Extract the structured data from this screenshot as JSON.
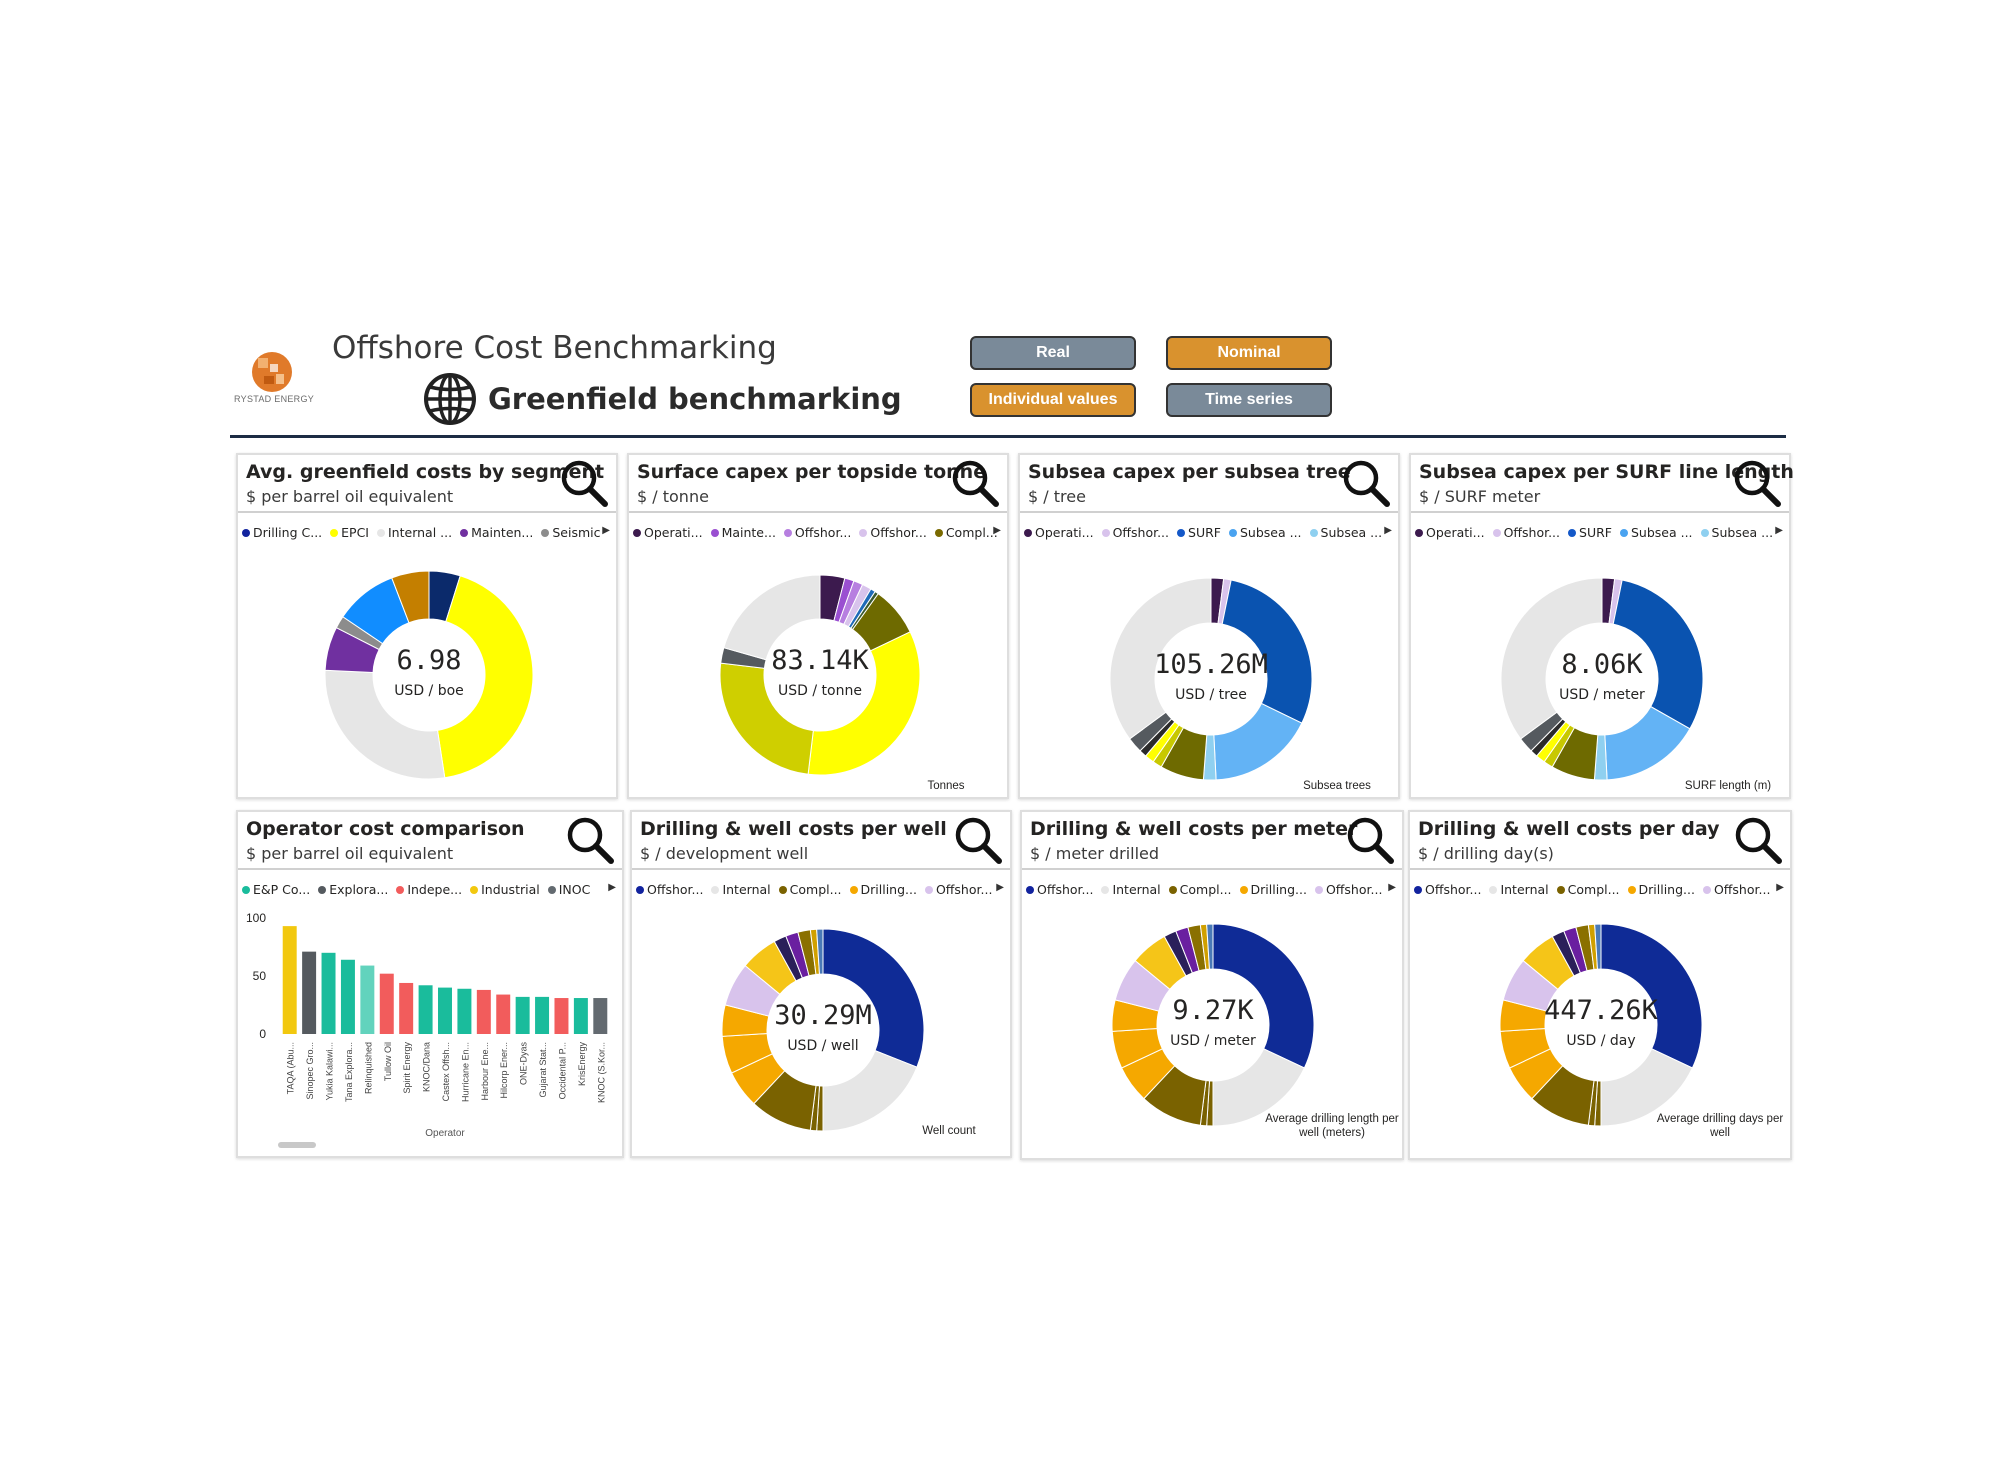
{
  "header": {
    "logo_text": "RYSTAD ENERGY",
    "app_title": "Offshore Cost Benchmarking",
    "subtitle": "Greenfield benchmarking",
    "buttons": {
      "real": "Real",
      "nominal": "Nominal",
      "individual": "Individual values",
      "time_series": "Time series"
    }
  },
  "colors": {
    "navy": "#1c2c44",
    "gray_button": "#7a8a99",
    "orange_button": "#d9922e"
  },
  "cards": [
    {
      "title": "Avg. greenfield costs by segment",
      "subtitle": "$ per barrel oil equivalent",
      "legend": [
        {
          "label": "Drilling C...",
          "color": "#12239e"
        },
        {
          "label": "EPCI",
          "color": "#ffff00"
        },
        {
          "label": "Internal ...",
          "color": "#e6e6e6"
        },
        {
          "label": "Mainten...",
          "color": "#7030a0"
        },
        {
          "label": "Seismic",
          "color": "#8c8c8c"
        }
      ],
      "value": "6.98",
      "unit": "USD / boe",
      "note": ""
    },
    {
      "title": "Surface capex per topside tonne",
      "subtitle": "$ / tonne",
      "legend": [
        {
          "label": "Operati...",
          "color": "#3c1a4e"
        },
        {
          "label": "Mainte...",
          "color": "#9a4fd1"
        },
        {
          "label": "Offshor...",
          "color": "#b77fe0"
        },
        {
          "label": "Offshor...",
          "color": "#d8c3ec"
        },
        {
          "label": "Compl...",
          "color": "#7a6a00"
        }
      ],
      "value": "83.14K",
      "unit": "USD / tonne",
      "note": "Tonnes"
    },
    {
      "title": "Subsea capex per subsea tree",
      "subtitle": "$ / tree",
      "legend": [
        {
          "label": "Operati...",
          "color": "#3c1a4e"
        },
        {
          "label": "Offshor...",
          "color": "#d8c3ec"
        },
        {
          "label": "SURF",
          "color": "#1458c8"
        },
        {
          "label": "Subsea ...",
          "color": "#4aa3f0"
        },
        {
          "label": "Subsea ...",
          "color": "#8fd0f0"
        }
      ],
      "value": "105.26M",
      "unit": "USD / tree",
      "note": "Subsea trees"
    },
    {
      "title": "Subsea capex per SURF line length",
      "subtitle": "$ / SURF meter",
      "legend": [
        {
          "label": "Operati...",
          "color": "#3c1a4e"
        },
        {
          "label": "Offshor...",
          "color": "#d8c3ec"
        },
        {
          "label": "SURF",
          "color": "#1458c8"
        },
        {
          "label": "Subsea ...",
          "color": "#4aa3f0"
        },
        {
          "label": "Subsea ...",
          "color": "#8fd0f0"
        }
      ],
      "value": "8.06K",
      "unit": "USD / meter",
      "note": "SURF length (m)"
    },
    {
      "title": "Operator cost comparison",
      "subtitle": "$ per barrel oil equivalent",
      "legend": [
        {
          "label": "E&P Co...",
          "color": "#1abc9c"
        },
        {
          "label": "Explora...",
          "color": "#555a5f"
        },
        {
          "label": "Indepe...",
          "color": "#f25c5c"
        },
        {
          "label": "Industrial",
          "color": "#f2c80f"
        },
        {
          "label": "INOC",
          "color": "#636a70"
        }
      ]
    },
    {
      "title": "Drilling & well costs per well",
      "subtitle": "$ / development well",
      "legend": [
        {
          "label": "Offshor...",
          "color": "#12239e"
        },
        {
          "label": "Internal",
          "color": "#e6e6e6"
        },
        {
          "label": "Compl...",
          "color": "#7a6200"
        },
        {
          "label": "Drilling...",
          "color": "#f5a800"
        },
        {
          "label": "Offshor...",
          "color": "#d8c3ec"
        }
      ],
      "value": "30.29M",
      "unit": "USD / well",
      "note": "Well count"
    },
    {
      "title": "Drilling & well costs per meter",
      "subtitle": "$ / meter drilled",
      "legend": [
        {
          "label": "Offshor...",
          "color": "#12239e"
        },
        {
          "label": "Internal",
          "color": "#e6e6e6"
        },
        {
          "label": "Compl...",
          "color": "#7a6200"
        },
        {
          "label": "Drilling...",
          "color": "#f5a800"
        },
        {
          "label": "Offshor...",
          "color": "#d8c3ec"
        }
      ],
      "value": "9.27K",
      "unit": "USD / meter",
      "note": "Average drilling length per well (meters)"
    },
    {
      "title": "Drilling & well costs per day",
      "subtitle": "$ / drilling day(s)",
      "legend": [
        {
          "label": "Offshor...",
          "color": "#12239e"
        },
        {
          "label": "Internal",
          "color": "#e6e6e6"
        },
        {
          "label": "Compl...",
          "color": "#7a6200"
        },
        {
          "label": "Drilling...",
          "color": "#f5a800"
        },
        {
          "label": "Offshor...",
          "color": "#d8c3ec"
        }
      ],
      "value": "447.26K",
      "unit": "USD / day",
      "note": "Average drilling days per well"
    }
  ],
  "chart_data": [
    {
      "type": "pie",
      "title": "Avg. greenfield costs by segment",
      "donut": true,
      "slices": [
        {
          "label": "Drilling C...",
          "value": 5,
          "color": "#0b2a6b"
        },
        {
          "label": "EPCI",
          "value": 44,
          "color": "#ffff00"
        },
        {
          "label": "Internal ...",
          "value": 29,
          "color": "#e6e6e6"
        },
        {
          "label": "Mainten...",
          "value": 7,
          "color": "#7030a0"
        },
        {
          "label": "Seismic",
          "value": 2,
          "color": "#8c8c8c"
        },
        {
          "label": "",
          "value": 10,
          "color": "#118dff"
        },
        {
          "label": "",
          "value": 6,
          "color": "#c47f00"
        }
      ]
    },
    {
      "type": "pie",
      "title": "Surface capex per topside tonne",
      "donut": true,
      "slices": [
        {
          "label": "Operati...",
          "value": 4,
          "color": "#3c1a4e"
        },
        {
          "label": "Mainte...",
          "value": 1.5,
          "color": "#9a4fd1"
        },
        {
          "label": "Offshor...",
          "value": 1.5,
          "color": "#b77fe0"
        },
        {
          "label": "Offshor...",
          "value": 1.5,
          "color": "#d8c3ec"
        },
        {
          "label": "",
          "value": 0.8,
          "color": "#1f6ab8"
        },
        {
          "label": "",
          "value": 0.6,
          "color": "#3a5a30"
        },
        {
          "label": "Compl...",
          "value": 8,
          "color": "#6e6a00"
        },
        {
          "label": "",
          "value": 34,
          "color": "#ffff00"
        },
        {
          "label": "",
          "value": 25,
          "color": "#cfcf00"
        },
        {
          "label": "",
          "value": 2.5,
          "color": "#555a5f"
        },
        {
          "label": "",
          "value": 20.6,
          "color": "#e6e6e6"
        }
      ]
    },
    {
      "type": "pie",
      "title": "Subsea capex per subsea tree",
      "donut": true,
      "slices": [
        {
          "label": "Operati...",
          "value": 2,
          "color": "#3c1a4e"
        },
        {
          "label": "Offshor...",
          "value": 1.2,
          "color": "#d8c3ec"
        },
        {
          "label": "SURF",
          "value": 29,
          "color": "#0a53b0"
        },
        {
          "label": "Subsea ...",
          "value": 17,
          "color": "#63b3f5"
        },
        {
          "label": "Subsea ...",
          "value": 2,
          "color": "#8fd0f0"
        },
        {
          "label": "",
          "value": 7,
          "color": "#6e6a00"
        },
        {
          "label": "",
          "value": 1.5,
          "color": "#c8c800"
        },
        {
          "label": "",
          "value": 1.5,
          "color": "#ffff00"
        },
        {
          "label": "",
          "value": 1.2,
          "color": "#2b2b2b"
        },
        {
          "label": "",
          "value": 2.5,
          "color": "#555a5f"
        },
        {
          "label": "",
          "value": 35.1,
          "color": "#e6e6e6"
        }
      ]
    },
    {
      "type": "pie",
      "title": "Subsea capex per SURF line length",
      "donut": true,
      "slices": [
        {
          "label": "Operati...",
          "value": 2,
          "color": "#3c1a4e"
        },
        {
          "label": "Offshor...",
          "value": 1.2,
          "color": "#d8c3ec"
        },
        {
          "label": "SURF",
          "value": 30,
          "color": "#0a53b0"
        },
        {
          "label": "Subsea ...",
          "value": 16,
          "color": "#63b3f5"
        },
        {
          "label": "Subsea ...",
          "value": 2,
          "color": "#8fd0f0"
        },
        {
          "label": "",
          "value": 7,
          "color": "#6e6a00"
        },
        {
          "label": "",
          "value": 1.5,
          "color": "#c8c800"
        },
        {
          "label": "",
          "value": 1.5,
          "color": "#ffff00"
        },
        {
          "label": "",
          "value": 1.2,
          "color": "#2b2b2b"
        },
        {
          "label": "",
          "value": 2.5,
          "color": "#555a5f"
        },
        {
          "label": "",
          "value": 35.1,
          "color": "#e6e6e6"
        }
      ]
    },
    {
      "type": "bar",
      "title": "Operator cost comparison",
      "xlabel": "Operator",
      "ylabel": "",
      "ylim": [
        0,
        100
      ],
      "yticks": [
        0,
        50,
        100
      ],
      "categories": [
        "TAQA (Abu...",
        "Sinopec Gro...",
        "Yukia Kalawi...",
        "Tana Explora...",
        "Relinquished",
        "Tullow Oil",
        "Spirit Energy",
        "KNOC/Dana",
        "Castex Offsh...",
        "Hurricane En...",
        "Harbour Ene...",
        "Hilcorp Ener...",
        "ONE-Dyas",
        "Gujarat Stat...",
        "Occidental P...",
        "KrisEnergy",
        "KNOC (S.Kor..."
      ],
      "values": [
        93,
        71,
        70,
        64,
        59,
        52,
        44,
        42,
        40,
        39,
        38,
        34,
        32,
        32,
        31,
        31,
        31
      ],
      "colors": [
        "#f2c80f",
        "#555a5f",
        "#1abc9c",
        "#1abc9c",
        "#62d3bd",
        "#f25c5c",
        "#f25c5c",
        "#1abc9c",
        "#1abc9c",
        "#1abc9c",
        "#f25c5c",
        "#f25c5c",
        "#1abc9c",
        "#1abc9c",
        "#f25c5c",
        "#1abc9c",
        "#636a70"
      ]
    },
    {
      "type": "pie",
      "title": "Drilling & well costs per well",
      "donut": true,
      "slices": [
        {
          "label": "Offshor...",
          "value": 31,
          "color": "#0f2b96"
        },
        {
          "label": "Internal",
          "value": 19,
          "color": "#e6e6e6"
        },
        {
          "label": "",
          "value": 1,
          "color": "#7a6200"
        },
        {
          "label": "",
          "value": 1,
          "color": "#7a6200"
        },
        {
          "label": "Compl...",
          "value": 10,
          "color": "#7a6200"
        },
        {
          "label": "Drilling...",
          "value": 6,
          "color": "#f5a800"
        },
        {
          "label": "",
          "value": 6,
          "color": "#f5a800"
        },
        {
          "label": "",
          "value": 5,
          "color": "#f5a800"
        },
        {
          "label": "Offshor...",
          "value": 7,
          "color": "#d8c3ec"
        },
        {
          "label": "",
          "value": 6,
          "color": "#f5c518"
        },
        {
          "label": "",
          "value": 2,
          "color": "#2a1f5a"
        },
        {
          "label": "",
          "value": 2,
          "color": "#6a1fa0"
        },
        {
          "label": "",
          "value": 2,
          "color": "#8a7000"
        },
        {
          "label": "",
          "value": 1,
          "color": "#d0a000"
        },
        {
          "label": "",
          "value": 1,
          "color": "#4a7ab8"
        }
      ]
    },
    {
      "type": "pie",
      "title": "Drilling & well costs per meter",
      "donut": true,
      "slices": [
        {
          "label": "Offshor...",
          "value": 32,
          "color": "#0f2b96"
        },
        {
          "label": "Internal",
          "value": 18,
          "color": "#e6e6e6"
        },
        {
          "label": "",
          "value": 1,
          "color": "#7a6200"
        },
        {
          "label": "",
          "value": 1,
          "color": "#7a6200"
        },
        {
          "label": "Compl...",
          "value": 10,
          "color": "#7a6200"
        },
        {
          "label": "Drilling...",
          "value": 6,
          "color": "#f5a800"
        },
        {
          "label": "",
          "value": 6,
          "color": "#f5a800"
        },
        {
          "label": "",
          "value": 5,
          "color": "#f5a800"
        },
        {
          "label": "Offshor...",
          "value": 7,
          "color": "#d8c3ec"
        },
        {
          "label": "",
          "value": 6,
          "color": "#f5c518"
        },
        {
          "label": "",
          "value": 2,
          "color": "#2a1f5a"
        },
        {
          "label": "",
          "value": 2,
          "color": "#6a1fa0"
        },
        {
          "label": "",
          "value": 2,
          "color": "#8a7000"
        },
        {
          "label": "",
          "value": 1,
          "color": "#d0a000"
        },
        {
          "label": "",
          "value": 1,
          "color": "#4a7ab8"
        }
      ]
    },
    {
      "type": "pie",
      "title": "Drilling & well costs per day",
      "donut": true,
      "slices": [
        {
          "label": "Offshor...",
          "value": 32,
          "color": "#0f2b96"
        },
        {
          "label": "Internal",
          "value": 18,
          "color": "#e6e6e6"
        },
        {
          "label": "",
          "value": 1,
          "color": "#7a6200"
        },
        {
          "label": "",
          "value": 1,
          "color": "#7a6200"
        },
        {
          "label": "Compl...",
          "value": 10,
          "color": "#7a6200"
        },
        {
          "label": "Drilling...",
          "value": 6,
          "color": "#f5a800"
        },
        {
          "label": "",
          "value": 6,
          "color": "#f5a800"
        },
        {
          "label": "",
          "value": 5,
          "color": "#f5a800"
        },
        {
          "label": "Offshor...",
          "value": 7,
          "color": "#d8c3ec"
        },
        {
          "label": "",
          "value": 6,
          "color": "#f5c518"
        },
        {
          "label": "",
          "value": 2,
          "color": "#2a1f5a"
        },
        {
          "label": "",
          "value": 2,
          "color": "#6a1fa0"
        },
        {
          "label": "",
          "value": 2,
          "color": "#8a7000"
        },
        {
          "label": "",
          "value": 1,
          "color": "#d0a000"
        },
        {
          "label": "",
          "value": 1,
          "color": "#4a7ab8"
        }
      ]
    }
  ]
}
